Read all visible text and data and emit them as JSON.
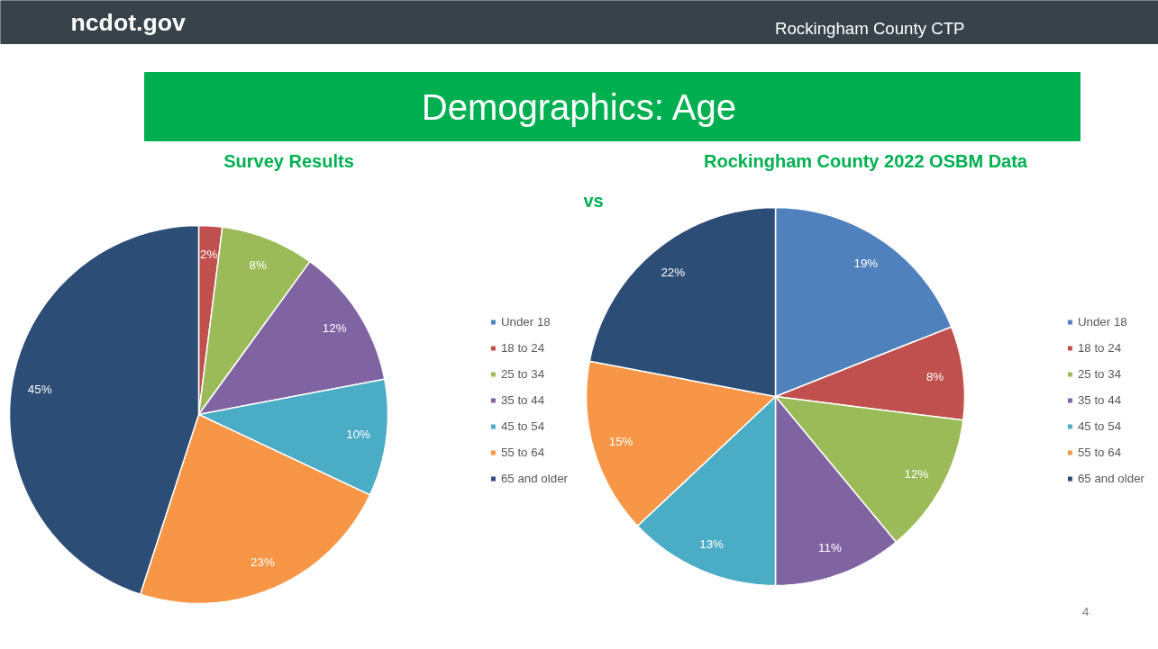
{
  "chart_data": [
    {
      "type": "pie",
      "title": "Survey Results",
      "annotations": [
        "ncdot.gov",
        "Rockingham County CTP",
        "Demographics: Age",
        "vs",
        "4"
      ],
      "categories": [
        "Under 18",
        "18 to 24",
        "25 to 34",
        "35 to 44",
        "45 to 54",
        "55 to 64",
        "65 and older"
      ],
      "values": [
        0,
        2,
        8,
        12,
        10,
        23,
        45
      ],
      "value_labels": [
        null,
        "2%",
        "8%",
        "12%",
        "10%",
        "23%",
        "45%"
      ],
      "colors": [
        "#4f81bd",
        "#c0504d",
        "#9bbb59",
        "#8064a2",
        "#4bacc6",
        "#f79646",
        "#2c4d75"
      ],
      "legend": "right"
    },
    {
      "type": "pie",
      "title": "Rockingham County 2022 OSBM Data",
      "categories": [
        "Under 18",
        "18 to 24",
        "25 to 34",
        "35 to 44",
        "45 to 54",
        "55 to 64",
        "65 and older"
      ],
      "values": [
        19,
        8,
        12,
        11,
        13,
        15,
        22
      ],
      "value_labels": [
        "19%",
        "8%",
        "12%",
        "11%",
        "13%",
        "15%",
        "22%"
      ],
      "colors": [
        "#4f81bd",
        "#c0504d",
        "#9bbb59",
        "#8064a2",
        "#4bacc6",
        "#f79646",
        "#2c4d75"
      ],
      "legend": "right"
    }
  ]
}
